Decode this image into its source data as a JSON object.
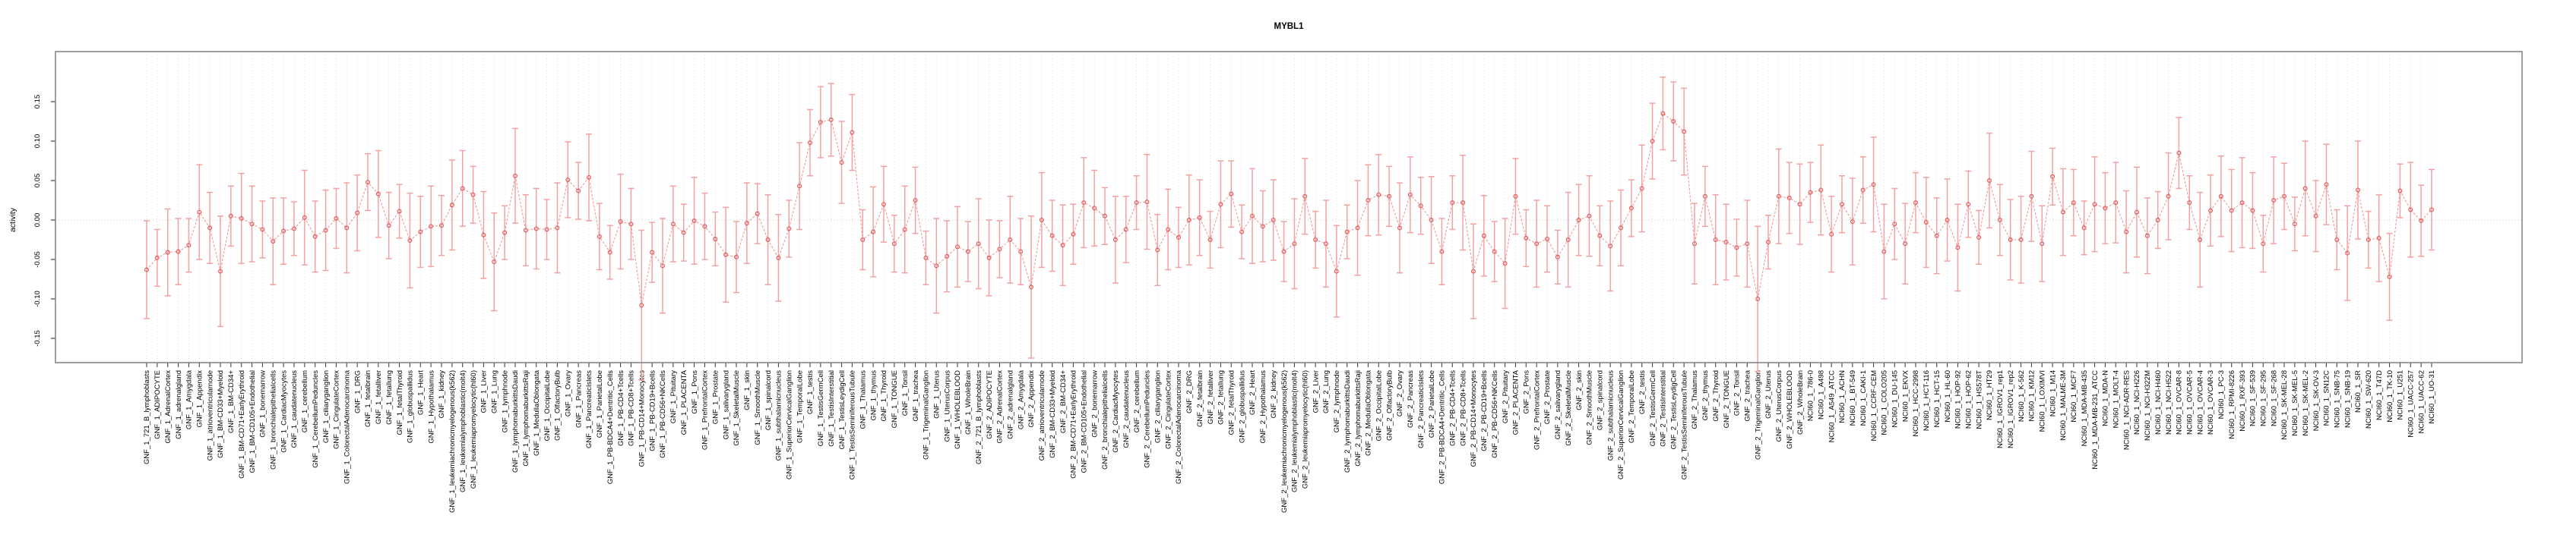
{
  "title": "MYBL1",
  "axes": {
    "ylabel": "activity",
    "ytick_labels": [
      "-0.15",
      "-0.10",
      "-0.05",
      "0.00",
      "0.05",
      "0.10",
      "0.15"
    ],
    "ytick_values": [
      -0.15,
      -0.1,
      -0.05,
      0.0,
      0.05,
      0.1,
      0.15
    ]
  },
  "colors": {
    "error_bar": "#f2a2a2",
    "connect_line": "#ef9a9a",
    "point_stroke": "#e05d5d",
    "gridline": "#dcdcdc",
    "zero_line": "#c9c9c9",
    "plot_border": "#7f7f7f",
    "tick": "#444444",
    "label_text": "#1a1a1a"
  },
  "chart_data": {
    "type": "scatter",
    "subtype": "errorbar-line",
    "title": "MYBL1",
    "xlabel": "",
    "ylabel": "activity",
    "ylim": [
      -0.17,
      0.17
    ],
    "grid": "vertical-dotted-per-category, dotted zero line",
    "legend_position": "none",
    "categories": [
      "GNF_1_721_B_lymphoblasts",
      "GNF_1_ADIPOCYTE",
      "GNF_1_AdrenalCortex",
      "GNF_1_adrenalgland",
      "GNF_1_Amygdala",
      "GNF_1_Appendix",
      "GNF_1_atrioventricularnode",
      "GNF_1_BM-CD33+Myeloid",
      "GNF_1_BM-CD34+",
      "GNF_1_BM-CD71+EarlyErythroid",
      "GNF_1_BM-CD105+Endothelial",
      "GNF_1_bonemarrow",
      "GNF_1_bronchialepithelialcells",
      "GNF_1_CardiacMyocytes",
      "GNF_1_caudatenucleus",
      "GNF_1_cerebellum",
      "GNF_1_CerebellumPeduncles",
      "GNF_1_ciliaryganglion",
      "GNF_1_CingulateCortex",
      "GNF_1_ColorectalAdenocarcinoma",
      "GNF_1_DRG",
      "GNF_1_fetalbrain",
      "GNF_1_fetalliver",
      "GNF_1_fetallung",
      "GNF_1_fetalThyroid",
      "GNF_1_globuspallidus",
      "GNF_1_Heart",
      "GNF_1_Hypothalamus",
      "GNF_1_kidney",
      "GNF_1_leukemiachronicmyelogenous(k562)",
      "GNF_1_leukemialymphoblastic(molt4)",
      "GNF_1_leukemiapromyelocytic(hl60)",
      "GNF_1_Liver",
      "GNF_1_Lung",
      "GNF_1_lymphnode",
      "GNF_1_lymphomaburkittsDaudi",
      "GNF_1_lymphomaburkittsRaji",
      "GNF_1_MedullaOblongata",
      "GNF_1_OccipitalLobe",
      "GNF_1_OlfactoryBulb",
      "GNF_1_Ovary",
      "GNF_1_Pancreas",
      "GNF_1_PancreaticIslets",
      "GNF_1_ParietalLobe",
      "GNF_1_PB-BDCA4+Dentritic_Cells",
      "GNF_1_PB-CD4+Tcells",
      "GNF_1_PB-CD8+Tcells",
      "GNF_1_PB-CD14+Monocytes",
      "GNF_1_PB-CD19+Bcells",
      "GNF_1_PB-CD56+NKCells",
      "GNF_1_Pituitary",
      "GNF_1_PLACENTA",
      "GNF_1_Pons",
      "GNF_1_PrefrontalCortex",
      "GNF_1_Prostate",
      "GNF_1_salivarygland",
      "GNF_1_SkeletalMuscle",
      "GNF_1_skin",
      "GNF_1_SmoothMuscle",
      "GNF_1_spinalcord",
      "GNF_1_subthalamicnucleus",
      "GNF_1_SuperiorCervicalGanglion",
      "GNF_1_TemporalLobe",
      "GNF_1_testis",
      "GNF_1_TestisGermCell",
      "GNF_1_TestisInterstitial",
      "GNF_1_TestisLeydigCell",
      "GNF_1_TestisSeminiferousTubule",
      "GNF_1_Thalamus",
      "GNF_1_thymus",
      "GNF_1_Thyroid",
      "GNF_1_TONGUE",
      "GNF_1_Tonsil",
      "GNF_1_trachea",
      "GNF_1_TrigeminalGanglion",
      "GNF_1_Uterus",
      "GNF_1_UterusCorpus",
      "GNF_1_WHOLEBLOOD",
      "GNF_1_WholeBrain",
      "GNF_2_721_B_lymphoblasts",
      "GNF_2_ADIPOCYTE",
      "GNF_2_AdrenalCortex",
      "GNF_2_adrenalgland",
      "GNF_2_Amygdala",
      "GNF_2_Appendix",
      "GNF_2_atrioventricularnode",
      "GNF_2_BM-CD33+Myeloid",
      "GNF_2_BM-CD34+",
      "GNF_2_BM-CD71+EarlyErythroid",
      "GNF_2_BM-CD105+Endothelial",
      "GNF_2_bonemarrow",
      "GNF_2_bronchialepithelialcells",
      "GNF_2_CardiacMyocytes",
      "GNF_2_caudatenucleus",
      "GNF_2_cerebellum",
      "GNF_2_CerebellumPeduncles",
      "GNF_2_ciliaryganglion",
      "GNF_2_CingulateCortex",
      "GNF_2_ColorectalAdenocarcinoma",
      "GNF_2_DRG",
      "GNF_2_fetalbrain",
      "GNF_2_fetalliver",
      "GNF_2_fetallung",
      "GNF_2_fetalThyroid",
      "GNF_2_globuspallidus",
      "GNF_2_Heart",
      "GNF_2_Hypothalamus",
      "GNF_2_kidney",
      "GNF_2_leukemiachronicmyelogenous(k562)",
      "GNF_2_leukemialymphoblastic(molt4)",
      "GNF_2_leukemiapromyelocytic(hl60)",
      "GNF_2_Liver",
      "GNF_2_Lung",
      "GNF_2_lymphnode",
      "GNF_2_lymphomaburkittsDaudi",
      "GNF_2_lymphomaburkittsRaji",
      "GNF_2_MedullaOblongata",
      "GNF_2_OccipitalLobe",
      "GNF_2_OlfactoryBulb",
      "GNF_2_Ovary",
      "GNF_2_Pancreas",
      "GNF_2_PancreaticIslets",
      "GNF_2_ParietalLobe",
      "GNF_2_PB-BDCA4+Dentritic_Cells",
      "GNF_2_PB-CD4+Tcells",
      "GNF_2_PB-CD8+Tcells",
      "GNF_2_PB-CD14+Monocytes",
      "GNF_2_PB-CD19+Bcells",
      "GNF_2_PB-CD56+NKCells",
      "GNF_2_Pituitary",
      "GNF_2_PLACENTA",
      "GNF_2_Pons",
      "GNF_2_PrefrontalCortex",
      "GNF_2_Prostate",
      "GNF_2_salivarygland",
      "GNF_2_SkeletalMuscle",
      "GNF_2_skin",
      "GNF_2_SmoothMuscle",
      "GNF_2_spinalcord",
      "GNF_2_subthalamicnucleus",
      "GNF_2_SuperiorCervicalGanglion",
      "GNF_2_TemporalLobe",
      "GNF_2_testis",
      "GNF_2_TestisGermCell",
      "GNF_2_TestisInterstitial",
      "GNF_2_TestisLeydigCell",
      "GNF_2_TestisSeminiferousTubule",
      "GNF_2_Thalamus",
      "GNF_2_thymus",
      "GNF_2_Thyroid",
      "GNF_2_TONGUE",
      "GNF_2_Tonsil",
      "GNF_2_trachea",
      "GNF_2_TrigeminalGanglion",
      "GNF_2_Uterus",
      "GNF_2_UterusCorpus",
      "GNF_2_WHOLEBLOOD",
      "GNF_2_WholeBrain",
      "NCI60_1_786-0",
      "NCI60_1_A498",
      "NCI60_1_A549_ATCC",
      "NCI60_1_ACHN",
      "NCI60_1_BT-549",
      "NCI60_1_CAKI-1",
      "NCI60_1_CCRF-CEM",
      "NCI60_1_COLO205",
      "NCI60_1_DU-145",
      "NCI60_1_EKVX",
      "NCI60_1_HCC-2998",
      "NCI60_1_HCT-116",
      "NCI60_1_HCT-15",
      "NCI60_1_HL-60",
      "NCI60_1_HOP-92",
      "NCI60_1_HOP-62",
      "NCI60_1_HS578T",
      "NCI60_1_HT29",
      "NCI60_1_IGROV1_rep1",
      "NCI60_1_IGROV1_rep2",
      "NCI60_1_K-562",
      "NCI60_1_KM12",
      "NCI60_1_LOXIMVI",
      "NCI60_1_M14",
      "NCI60_1_MALME-3M",
      "NCI60_1_MCF7",
      "NCI60_1_MDA-MB-435",
      "NCI60_1_MDA-MB-231_ATCC",
      "NCI60_1_MDA-N",
      "NCI60_1_MOLT-4",
      "NCI60_1_NCI-ADR-RES",
      "NCI60_1_NCI-H226",
      "NCI60_1_NCI-H322M",
      "NCI60_1_NCI-H460",
      "NCI60_1_NCI-H522",
      "NCI60_1_OVCAR-8",
      "NCI60_1_OVCAR-5",
      "NCI60_1_OVCAR-4",
      "NCI60_1_OVCAR-3",
      "NCI60_1_PC-3",
      "NCI60_1_RPMI-8226",
      "NCI60_1_RXF-393",
      "NCI60_1_SF-539",
      "NCI60_1_SF-295",
      "NCI60_1_SF-268",
      "NCI60_1_SK-MEL-28",
      "NCI60_1_SK-MEL-5",
      "NCI60_1_SK-MEL-2",
      "NCI60_1_SK-OV-3",
      "NCI60_1_SN12C",
      "NCI60_1_SNB-75",
      "NCI60_1_SNB-19",
      "NCI60_1_SR",
      "NCI60_1_SW-620",
      "NCI60_1_T47D",
      "NCI60_1_TK-10",
      "NCI60_1_U251",
      "NCI60_1_UACC-257",
      "NCI60_1_UACC-62",
      "NCI60_1_UO-31"
    ],
    "values": [
      -0.063,
      -0.048,
      -0.041,
      -0.04,
      -0.032,
      0.01,
      -0.01,
      -0.065,
      0.005,
      0.002,
      -0.005,
      -0.012,
      -0.027,
      -0.014,
      -0.011,
      0.003,
      -0.021,
      -0.013,
      0.002,
      -0.01,
      0.009,
      0.048,
      0.033,
      -0.007,
      0.011,
      -0.026,
      -0.015,
      -0.008,
      -0.007,
      0.019,
      0.04,
      0.032,
      -0.019,
      -0.053,
      -0.016,
      0.056,
      -0.013,
      -0.011,
      -0.012,
      -0.01,
      0.051,
      0.037,
      0.054,
      -0.021,
      -0.041,
      -0.002,
      -0.005,
      -0.108,
      -0.041,
      -0.058,
      -0.005,
      -0.016,
      -0.001,
      -0.008,
      -0.024,
      -0.044,
      -0.047,
      -0.004,
      0.008,
      -0.025,
      -0.048,
      -0.011,
      0.043,
      0.098,
      0.124,
      0.127,
      0.073,
      0.111,
      -0.025,
      -0.015,
      0.02,
      -0.03,
      -0.012,
      0.025,
      -0.048,
      -0.058,
      -0.046,
      -0.034,
      -0.04,
      -0.03,
      -0.048,
      -0.037,
      -0.025,
      -0.04,
      -0.085,
      0.0,
      -0.02,
      -0.032,
      -0.018,
      0.022,
      0.015,
      0.005,
      -0.025,
      -0.012,
      0.022,
      0.023,
      -0.038,
      -0.012,
      -0.022,
      0.0,
      0.003,
      -0.025,
      0.02,
      0.033,
      -0.015,
      0.005,
      -0.008,
      0.0,
      -0.04,
      -0.03,
      0.03,
      -0.025,
      -0.03,
      -0.065,
      -0.015,
      -0.01,
      0.025,
      0.032,
      0.03,
      -0.01,
      0.032,
      0.018,
      0.0,
      -0.04,
      0.022,
      0.022,
      -0.065,
      -0.02,
      -0.04,
      -0.055,
      0.03,
      -0.023,
      -0.03,
      -0.024,
      -0.047,
      -0.025,
      0.0,
      0.005,
      -0.02,
      -0.033,
      -0.01,
      0.015,
      0.04,
      0.1,
      0.135,
      0.125,
      0.112,
      -0.03,
      0.03,
      -0.025,
      -0.028,
      -0.035,
      -0.03,
      -0.1,
      -0.028,
      0.03,
      0.028,
      0.02,
      0.035,
      0.038,
      -0.018,
      0.02,
      -0.002,
      0.038,
      0.045,
      -0.04,
      -0.005,
      -0.03,
      0.022,
      -0.003,
      -0.02,
      0.0,
      -0.035,
      0.02,
      -0.022,
      0.05,
      0.0,
      -0.025,
      -0.025,
      0.03,
      -0.03,
      0.055,
      0.01,
      0.022,
      -0.01,
      0.02,
      0.015,
      0.022,
      -0.015,
      0.01,
      -0.02,
      0.0,
      0.03,
      0.085,
      0.022,
      -0.025,
      0.012,
      0.03,
      0.012,
      0.022,
      0.012,
      -0.03,
      0.025,
      0.03,
      -0.005,
      0.04,
      0.005,
      0.045,
      -0.025,
      -0.042,
      0.038,
      -0.025,
      -0.023,
      -0.072,
      0.037,
      0.013,
      -0.001,
      0.013
    ],
    "errors": [
      0.062,
      0.036,
      0.055,
      0.042,
      0.034,
      0.06,
      0.045,
      0.07,
      0.038,
      0.057,
      0.048,
      0.036,
      0.055,
      0.042,
      0.034,
      0.06,
      0.045,
      0.051,
      0.038,
      0.057,
      0.048,
      0.036,
      0.055,
      0.042,
      0.034,
      0.06,
      0.045,
      0.051,
      0.038,
      0.057,
      0.048,
      0.036,
      0.055,
      0.062,
      0.034,
      0.06,
      0.045,
      0.051,
      0.038,
      0.057,
      0.048,
      0.036,
      0.055,
      0.042,
      0.034,
      0.06,
      0.045,
      0.095,
      0.038,
      0.06,
      0.048,
      0.036,
      0.055,
      0.042,
      0.034,
      0.06,
      0.045,
      0.051,
      0.038,
      0.057,
      0.055,
      0.036,
      0.055,
      0.042,
      0.045,
      0.046,
      0.052,
      0.048,
      0.038,
      0.057,
      0.048,
      0.036,
      0.055,
      0.042,
      0.034,
      0.06,
      0.045,
      0.051,
      0.038,
      0.057,
      0.048,
      0.036,
      0.055,
      0.042,
      0.09,
      0.06,
      0.045,
      0.051,
      0.038,
      0.057,
      0.048,
      0.036,
      0.055,
      0.042,
      0.034,
      0.06,
      0.045,
      0.051,
      0.038,
      0.057,
      0.048,
      0.036,
      0.055,
      0.042,
      0.034,
      0.06,
      0.045,
      0.051,
      0.038,
      0.057,
      0.048,
      0.036,
      0.055,
      0.058,
      0.034,
      0.06,
      0.045,
      0.051,
      0.038,
      0.057,
      0.048,
      0.036,
      0.055,
      0.042,
      0.034,
      0.06,
      0.06,
      0.051,
      0.038,
      0.057,
      0.048,
      0.036,
      0.055,
      0.042,
      0.034,
      0.06,
      0.045,
      0.051,
      0.038,
      0.057,
      0.048,
      0.036,
      0.055,
      0.048,
      0.046,
      0.05,
      0.055,
      0.051,
      0.038,
      0.057,
      0.048,
      0.036,
      0.055,
      0.092,
      0.034,
      0.06,
      0.045,
      0.051,
      0.038,
      0.057,
      0.048,
      0.036,
      0.055,
      0.042,
      0.06,
      0.06,
      0.045,
      0.051,
      0.038,
      0.057,
      0.048,
      0.052,
      0.055,
      0.042,
      0.034,
      0.06,
      0.045,
      0.051,
      0.055,
      0.057,
      0.048,
      0.036,
      0.055,
      0.042,
      0.034,
      0.06,
      0.045,
      0.051,
      0.052,
      0.057,
      0.048,
      0.036,
      0.055,
      0.045,
      0.034,
      0.06,
      0.045,
      0.051,
      0.052,
      0.057,
      0.048,
      0.036,
      0.055,
      0.042,
      0.034,
      0.06,
      0.045,
      0.051,
      0.038,
      0.06,
      0.062,
      0.036,
      0.055,
      0.055,
      0.034,
      0.06,
      0.045,
      0.051
    ]
  }
}
